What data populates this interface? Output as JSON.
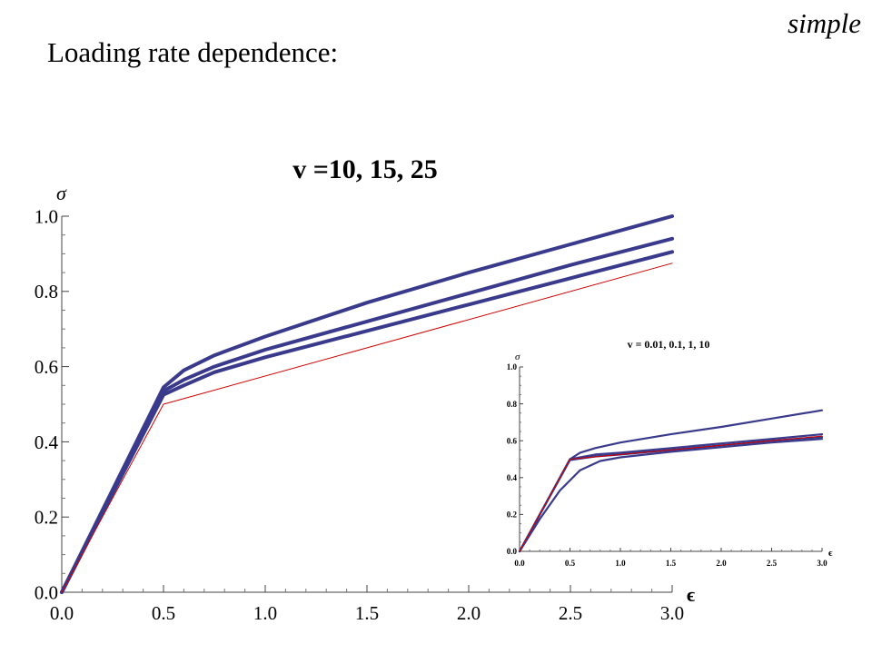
{
  "header": {
    "corner_label": "simple",
    "title": "Loading rate dependence:"
  },
  "colors": {
    "model_curves": "#3a3a8c",
    "reference_line": "#cc0000"
  },
  "chart_data": [
    {
      "type": "line",
      "title": "v =10,  15,  25",
      "xlabel": "ϵ",
      "ylabel": "σ",
      "xlim": [
        0,
        3.0
      ],
      "ylim": [
        0,
        1.0
      ],
      "xticks": [
        "0.0",
        "0.5",
        "1.0",
        "1.5",
        "2.0",
        "2.5",
        "3.0"
      ],
      "yticks": [
        "0.0",
        "0.2",
        "0.4",
        "0.6",
        "0.8",
        "1.0"
      ],
      "grid": false,
      "series": [
        {
          "style": "thick",
          "color": "#3a3a8c",
          "x": [
            0,
            0.5,
            0.6,
            0.75,
            1.0,
            1.5,
            2.0,
            2.5,
            3.0
          ],
          "y": [
            0.0,
            0.545,
            0.59,
            0.63,
            0.68,
            0.77,
            0.85,
            0.925,
            1.0
          ]
        },
        {
          "style": "thick",
          "color": "#3a3a8c",
          "x": [
            0,
            0.5,
            0.6,
            0.75,
            1.0,
            1.5,
            2.0,
            2.5,
            3.0
          ],
          "y": [
            0.0,
            0.535,
            0.565,
            0.6,
            0.645,
            0.72,
            0.795,
            0.87,
            0.94
          ]
        },
        {
          "style": "thick",
          "color": "#3a3a8c",
          "x": [
            0,
            0.5,
            0.6,
            0.75,
            1.0,
            1.5,
            2.0,
            2.5,
            3.0
          ],
          "y": [
            0.0,
            0.525,
            0.55,
            0.585,
            0.625,
            0.695,
            0.765,
            0.835,
            0.905
          ]
        },
        {
          "style": "thin",
          "color": "#cc0000",
          "x": [
            0,
            0.5,
            3.0
          ],
          "y": [
            0.0,
            0.5,
            0.875
          ]
        }
      ]
    },
    {
      "type": "line",
      "title": "v = 0.01,  0.1,  1,  10",
      "xlabel": "ϵ",
      "ylabel": "σ",
      "xlim": [
        0,
        3.0
      ],
      "ylim": [
        0,
        1.0
      ],
      "xticks": [
        "0.0",
        "0.5",
        "1.0",
        "1.5",
        "2.0",
        "2.5",
        "3.0"
      ],
      "yticks": [
        "0.0",
        "0.2",
        "0.4",
        "0.6",
        "0.8",
        "1.0"
      ],
      "grid": false,
      "series": [
        {
          "style": "thick",
          "color": "#3a3a8c",
          "x": [
            0,
            0.3,
            0.5,
            0.6,
            0.75,
            1.0,
            1.5,
            2.0,
            2.5,
            3.0
          ],
          "y": [
            0.0,
            0.3,
            0.5,
            0.535,
            0.56,
            0.59,
            0.635,
            0.675,
            0.72,
            0.765
          ]
        },
        {
          "style": "thick",
          "color": "#3a3a8c",
          "x": [
            0,
            0.5,
            0.75,
            1.0,
            1.5,
            2.0,
            2.5,
            3.0
          ],
          "y": [
            0.0,
            0.5,
            0.525,
            0.535,
            0.56,
            0.585,
            0.61,
            0.635
          ]
        },
        {
          "style": "thick",
          "color": "#3a3a8c",
          "x": [
            0,
            0.5,
            0.75,
            1.0,
            1.5,
            2.0,
            2.5,
            3.0
          ],
          "y": [
            0.0,
            0.495,
            0.515,
            0.525,
            0.55,
            0.575,
            0.6,
            0.62
          ]
        },
        {
          "style": "thick",
          "color": "#3a3a8c",
          "x": [
            0,
            0.2,
            0.4,
            0.6,
            0.8,
            1.0,
            1.5,
            2.0,
            2.5,
            3.0
          ],
          "y": [
            0.0,
            0.175,
            0.33,
            0.44,
            0.49,
            0.51,
            0.54,
            0.565,
            0.59,
            0.61
          ]
        },
        {
          "style": "thin",
          "color": "#cc0000",
          "x": [
            0,
            0.5,
            3.0
          ],
          "y": [
            0.0,
            0.5,
            0.625
          ]
        }
      ]
    }
  ]
}
